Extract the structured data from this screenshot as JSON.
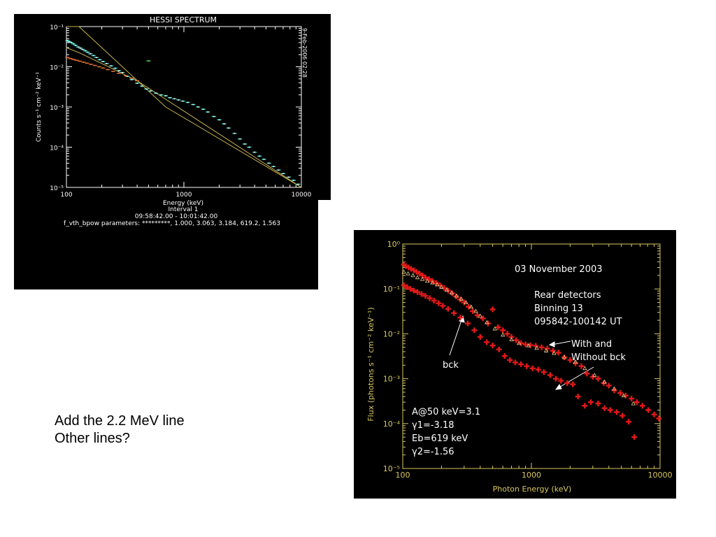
{
  "slide": {
    "notes": [
      "Add the 2.2 MeV line",
      "Other lines?"
    ]
  },
  "chart_data": [
    {
      "type": "scatter",
      "title": "HESSI SPECTRUM",
      "xlabel": "Energy (keV)",
      "ylabel": "Counts s⁻¹ cm⁻² keV⁻¹",
      "xscale": "log",
      "yscale": "log",
      "xlim": [
        100,
        10000
      ],
      "ylim": [
        1e-05,
        0.1
      ],
      "xticks": [
        "100",
        "1000",
        "10000"
      ],
      "yticks": [
        "10⁻¹",
        "10⁻²",
        "10⁻³",
        "10⁻⁴",
        "10⁻⁵"
      ],
      "side_label": "9-Feb-2006 02:28",
      "footer": [
        "Interval 1",
        "09:58:42.00 - 10:01:42.00",
        "f_vth_bpow parameters: *********, 1.000, 3.063, 3.184, 619.2, 1.563"
      ],
      "colors": {
        "background": "#000000",
        "axes": "#ffffff",
        "model": "#c8b450",
        "data_cyan": "#40e0d0",
        "data_orange": "#e07030",
        "data_green": "#50d050"
      },
      "series": [
        {
          "color": "#40e0d0",
          "x": [
            102,
            106,
            110,
            115,
            120,
            126,
            132,
            138,
            145,
            152,
            160,
            170,
            180,
            192,
            205,
            220,
            240,
            260,
            280,
            300,
            330,
            360,
            400,
            440,
            480,
            520,
            580,
            640,
            700,
            760,
            830,
            900,
            980,
            1080,
            1200,
            1320,
            1460,
            1600,
            1800,
            2000,
            2200,
            2400,
            2700,
            3000,
            3300,
            3600,
            4000,
            4400,
            4800,
            5300,
            5800,
            6400,
            7000,
            7800,
            8600,
            9400
          ],
          "y": [
            0.045,
            0.042,
            0.04,
            0.037,
            0.034,
            0.031,
            0.029,
            0.027,
            0.025,
            0.023,
            0.021,
            0.019,
            0.017,
            0.015,
            0.0135,
            0.012,
            0.0105,
            0.0092,
            0.008,
            0.0072,
            0.0058,
            0.0048,
            0.0039,
            0.0033,
            0.0028,
            0.0025,
            0.0022,
            0.002,
            0.0019,
            0.0017,
            0.0016,
            0.0015,
            0.0014,
            0.0013,
            0.00115,
            0.001,
            0.00088,
            0.00075,
            0.00058,
            0.00048,
            0.00038,
            0.0003,
            0.00022,
            0.00016,
            0.00012,
            0.0001,
            7.5e-05,
            6e-05,
            5e-05,
            4e-05,
            3.3e-05,
            2.7e-05,
            2.2e-05,
            1.8e-05,
            1.5e-05,
            1.2e-05
          ]
        },
        {
          "color": "#e07030",
          "x": [
            102,
            108,
            115,
            122,
            130,
            140,
            150,
            162,
            175,
            190,
            205,
            225,
            250,
            280,
            320,
            360,
            400
          ],
          "y": [
            0.017,
            0.016,
            0.0152,
            0.0145,
            0.0138,
            0.013,
            0.0123,
            0.0115,
            0.0108,
            0.01,
            0.0093,
            0.0085,
            0.0077,
            0.0069,
            0.006,
            0.0052,
            0.0045
          ]
        },
        {
          "color": "#50d050",
          "x": [
            500
          ],
          "y": [
            0.014
          ]
        }
      ],
      "model_lines": [
        {
          "name": "",
          "x": [
            100,
            128,
            700,
            10000
          ],
          "y": [
            0.1,
            0.1,
            0.001,
            1e-05
          ]
        },
        {
          "name": "",
          "x": [
            100,
            130,
            200,
            400,
            10000
          ],
          "y": [
            0.03,
            0.022,
            0.012,
            0.0045,
            1e-05
          ]
        }
      ]
    },
    {
      "type": "scatter",
      "title": "",
      "xlabel": "Photon Energy (keV)",
      "ylabel": "Flux (photons s⁻¹ cm⁻² keV⁻¹)",
      "xscale": "log",
      "yscale": "log",
      "xlim": [
        100,
        10000
      ],
      "ylim": [
        1e-05,
        1
      ],
      "xticks": [
        "100",
        "1000",
        "10000"
      ],
      "yticks": [
        "10⁰",
        "10⁻¹",
        "10⁻²",
        "10⁻³",
        "10⁻⁴",
        "10⁻⁵"
      ],
      "colors": {
        "background": "#000000",
        "axes": "#d8c860",
        "data": "#e01818",
        "bck": "#e8d090",
        "text": "#ffffff"
      },
      "annotations": {
        "info": [
          "03 November 2003",
          "",
          "Rear detectors",
          "Binning 13",
          "095842-100142 UT"
        ],
        "with_without": [
          "With and",
          "Without bck"
        ],
        "bck": "bck",
        "params": [
          "A@50 keV=3.1",
          "γ1=-3.18",
          "Eb=619 keV",
          "γ2=-1.56"
        ]
      },
      "series": [
        {
          "name": "with bck",
          "x": [
            102,
            106,
            111,
            116,
            122,
            128,
            135,
            142,
            150,
            160,
            170,
            182,
            195,
            210,
            225,
            242,
            260,
            280,
            300,
            325,
            350,
            380,
            420,
            460,
            500,
            550,
            600,
            650,
            700,
            760,
            830,
            900,
            980,
            1080,
            1200,
            1330,
            1470,
            1620,
            1800,
            2000,
            2200,
            2450,
            2700,
            3000,
            3300,
            3650,
            4000,
            4400,
            4900,
            5400,
            6000,
            6600,
            7300,
            8100,
            9000,
            9800
          ],
          "y": [
            0.35,
            0.32,
            0.3,
            0.28,
            0.26,
            0.24,
            0.22,
            0.2,
            0.18,
            0.165,
            0.15,
            0.135,
            0.12,
            0.105,
            0.092,
            0.08,
            0.068,
            0.058,
            0.05,
            0.04,
            0.032,
            0.026,
            0.022,
            0.017,
            0.035,
            0.014,
            0.012,
            0.01,
            0.0085,
            0.0072,
            0.0062,
            0.0058,
            0.0056,
            0.0054,
            0.005,
            0.0047,
            0.0042,
            0.0038,
            0.003,
            0.0026,
            0.0022,
            0.0019,
            0.0013,
            0.0011,
            0.001,
            0.0008,
            0.0007,
            0.00055,
            0.00048,
            0.00042,
            0.00036,
            0.0003,
            0.00025,
            0.0002,
            0.00016,
            0.00013
          ]
        },
        {
          "name": "without bck",
          "x": [
            102,
            108,
            115,
            122,
            130,
            140,
            150,
            162,
            175,
            190,
            205,
            225,
            250,
            280,
            320,
            360,
            400,
            450,
            500,
            560,
            620,
            680,
            750,
            830,
            920,
            1020,
            1130,
            1250,
            1400,
            1550,
            1700,
            1900,
            2100,
            2300,
            2600,
            2900,
            3300,
            3700,
            4100,
            4600,
            5100,
            5700,
            6300
          ],
          "y": [
            0.12,
            0.11,
            0.1,
            0.092,
            0.085,
            0.077,
            0.07,
            0.062,
            0.055,
            0.048,
            0.042,
            0.036,
            0.029,
            0.023,
            0.017,
            0.012,
            0.0085,
            0.0065,
            0.0055,
            0.0045,
            0.0032,
            0.0026,
            0.0023,
            0.0021,
            0.0019,
            0.0017,
            0.0016,
            0.0014,
            0.0012,
            0.001,
            0.0009,
            0.0008,
            0.00075,
            0.0004,
            0.00025,
            0.0003,
            0.00028,
            0.00022,
            0.0002,
            0.00018,
            0.00015,
            0.00011,
            5e-05
          ]
        },
        {
          "name": "bck",
          "x": [
            102,
            110,
            120,
            130,
            142,
            155,
            170,
            185,
            200,
            220,
            240,
            262,
            285,
            310,
            340,
            370,
            400,
            450,
            520,
            600,
            700,
            800,
            950,
            1100,
            1300,
            1500,
            1800,
            2200,
            2600,
            3100,
            3700,
            4400,
            5200,
            6200
          ],
          "y": [
            0.24,
            0.22,
            0.2,
            0.18,
            0.165,
            0.15,
            0.138,
            0.125,
            0.11,
            0.095,
            0.082,
            0.07,
            0.06,
            0.05,
            0.04,
            0.032,
            0.025,
            0.018,
            0.013,
            0.0095,
            0.0075,
            0.0062,
            0.0055,
            0.0048,
            0.0042,
            0.0037,
            0.003,
            0.0024,
            0.0017,
            0.0012,
            0.00085,
            0.0006,
            0.00042,
            0.00028
          ]
        }
      ]
    }
  ]
}
